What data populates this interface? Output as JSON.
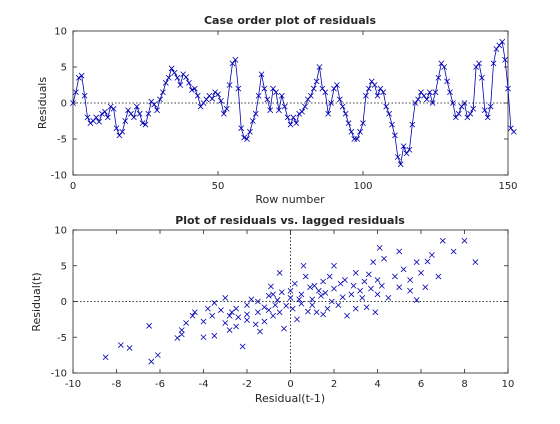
{
  "chart_data": [
    {
      "type": "line",
      "title": "Case order plot of residuals",
      "xlabel": "Row number",
      "ylabel": "Residuals",
      "xlim": [
        0,
        150
      ],
      "ylim": [
        -10,
        10
      ],
      "xticks": [
        0,
        50,
        100,
        150
      ],
      "yticks": [
        -10,
        -5,
        0,
        5,
        10
      ],
      "reference_line": 0,
      "marker": "x",
      "series_color": "#0000b3",
      "y": [
        0.0,
        1.5,
        3.5,
        3.8,
        1.0,
        -2.0,
        -2.8,
        -2.5,
        -2.0,
        -2.6,
        -1.5,
        -1.2,
        -2.0,
        -0.5,
        -0.8,
        -3.5,
        -4.5,
        -4.0,
        -2.5,
        -1.0,
        -1.5,
        -2.0,
        -0.5,
        -1.5,
        -2.8,
        -3.0,
        -1.5,
        0.2,
        -0.2,
        -1.0,
        0.5,
        1.5,
        2.8,
        3.5,
        4.8,
        4.2,
        3.5,
        2.5,
        4.0,
        3.6,
        2.8,
        1.8,
        2.0,
        1.0,
        -0.5,
        0.0,
        0.5,
        1.0,
        0.6,
        1.5,
        1.2,
        0.3,
        -1.5,
        -0.8,
        2.5,
        5.5,
        6.0,
        2.0,
        -3.5,
        -4.8,
        -5.0,
        -4.0,
        -2.5,
        -1.5,
        1.0,
        4.0,
        2.0,
        0.5,
        -1.0,
        2.0,
        1.5,
        -1.0,
        1.0,
        -0.5,
        -2.0,
        -3.0,
        -2.0,
        -2.8,
        -1.5,
        -1.2,
        -0.5,
        0.5,
        1.0,
        2.0,
        3.0,
        5.0,
        2.0,
        1.5,
        -1.5,
        0.0,
        2.0,
        2.5,
        0.5,
        -0.5,
        -1.5,
        -2.8,
        -4.0,
        -5.0,
        -5.0,
        -4.0,
        -2.8,
        1.0,
        2.0,
        3.0,
        2.5,
        1.0,
        2.0,
        1.5,
        -0.5,
        -1.5,
        -3.0,
        -4.5,
        -7.5,
        -8.5,
        -6.0,
        -7.0,
        -6.5,
        -3.0,
        0.0,
        0.5,
        1.5,
        1.0,
        0.5,
        1.5,
        0.0,
        1.5,
        3.5,
        5.5,
        5.0,
        3.0,
        1.5,
        0.0,
        -2.0,
        -1.5,
        -0.5,
        0.0,
        -2.0,
        -1.5,
        -0.8,
        5.0,
        5.5,
        3.5,
        -1.0,
        -2.0,
        -0.5,
        5.5,
        7.5,
        8.0,
        8.5,
        6.0,
        2.0,
        -3.5,
        -4.0
      ]
    },
    {
      "type": "scatter",
      "title": "Plot of residuals vs. lagged residuals",
      "xlabel": "Residual(t-1)",
      "ylabel": "Residual(t)",
      "xlim": [
        -10,
        10
      ],
      "ylim": [
        -10,
        10
      ],
      "xticks": [
        -10,
        -8,
        -6,
        -4,
        -2,
        0,
        2,
        4,
        6,
        8,
        10
      ],
      "yticks": [
        -10,
        -5,
        0,
        5,
        10
      ],
      "reference_lines": {
        "x": 0,
        "y": 0
      },
      "marker": "x",
      "series_color": "#0000b3",
      "points": [
        [
          -8.5,
          -7.8
        ],
        [
          -7.8,
          -6.1
        ],
        [
          -7.4,
          -6.5
        ],
        [
          -6.5,
          -3.4
        ],
        [
          -6.4,
          -8.4
        ],
        [
          -6.1,
          -7.5
        ],
        [
          -5.2,
          -5.1
        ],
        [
          -5.0,
          -4.6
        ],
        [
          -5.0,
          -4.0
        ],
        [
          -4.8,
          -3.0
        ],
        [
          -4.5,
          -2.0
        ],
        [
          -4.4,
          -1.5
        ],
        [
          -4.0,
          -2.8
        ],
        [
          -4.0,
          -5.0
        ],
        [
          -3.8,
          -1.0
        ],
        [
          -3.6,
          -2.0
        ],
        [
          -3.5,
          -4.8
        ],
        [
          -3.5,
          -0.2
        ],
        [
          -3.2,
          -1.2
        ],
        [
          -3.0,
          -3.0
        ],
        [
          -3.0,
          0.5
        ],
        [
          -2.8,
          -2.0
        ],
        [
          -2.8,
          -4.0
        ],
        [
          -2.7,
          -1.5
        ],
        [
          -2.5,
          -1.0
        ],
        [
          -2.5,
          -3.5
        ],
        [
          -2.4,
          -2.2
        ],
        [
          -2.2,
          -6.3
        ],
        [
          -2.0,
          -0.5
        ],
        [
          -2.0,
          -2.6
        ],
        [
          -2.0,
          -1.8
        ],
        [
          -1.8,
          0.3
        ],
        [
          -1.6,
          -3.2
        ],
        [
          -1.5,
          -1.5
        ],
        [
          -1.5,
          0.0
        ],
        [
          -1.4,
          -4.2
        ],
        [
          -1.2,
          -0.8
        ],
        [
          -1.2,
          -2.8
        ],
        [
          -1.0,
          0.8
        ],
        [
          -1.0,
          -1.2
        ],
        [
          -0.9,
          2.1
        ],
        [
          -0.8,
          1.0
        ],
        [
          -0.8,
          -2.0
        ],
        [
          -0.7,
          -0.5
        ],
        [
          -0.6,
          0.2
        ],
        [
          -0.5,
          -1.5
        ],
        [
          -0.5,
          4.0
        ],
        [
          -0.4,
          1.3
        ],
        [
          -0.3,
          -3.8
        ],
        [
          -0.2,
          -0.6
        ],
        [
          0.0,
          1.5
        ],
        [
          0.0,
          0.5
        ],
        [
          0.1,
          -1.0
        ],
        [
          0.2,
          2.5
        ],
        [
          0.3,
          -2.5
        ],
        [
          0.4,
          0.3
        ],
        [
          0.5,
          -0.3
        ],
        [
          0.5,
          1.0
        ],
        [
          0.6,
          5.0
        ],
        [
          0.7,
          3.5
        ],
        [
          0.8,
          -1.4
        ],
        [
          0.9,
          2.0
        ],
        [
          1.0,
          -0.5
        ],
        [
          1.0,
          0.3
        ],
        [
          1.1,
          2.2
        ],
        [
          1.2,
          -1.5
        ],
        [
          1.3,
          1.5
        ],
        [
          1.4,
          0.8
        ],
        [
          1.5,
          2.8
        ],
        [
          1.5,
          -1.8
        ],
        [
          1.6,
          1.2
        ],
        [
          1.7,
          -1.0
        ],
        [
          1.8,
          3.5
        ],
        [
          1.9,
          0.0
        ],
        [
          2.0,
          1.8
        ],
        [
          2.0,
          5.0
        ],
        [
          2.2,
          -0.5
        ],
        [
          2.3,
          2.5
        ],
        [
          2.4,
          0.6
        ],
        [
          2.5,
          3.0
        ],
        [
          2.6,
          -2.0
        ],
        [
          2.8,
          1.0
        ],
        [
          2.9,
          2.2
        ],
        [
          3.0,
          4.0
        ],
        [
          3.0,
          -1.0
        ],
        [
          3.2,
          1.5
        ],
        [
          3.3,
          0.5
        ],
        [
          3.4,
          2.8
        ],
        [
          3.5,
          -0.8
        ],
        [
          3.6,
          3.8
        ],
        [
          3.7,
          1.8
        ],
        [
          3.8,
          5.5
        ],
        [
          3.9,
          -1.5
        ],
        [
          4.0,
          3.0
        ],
        [
          4.0,
          1.0
        ],
        [
          4.1,
          7.5
        ],
        [
          4.2,
          2.2
        ],
        [
          4.3,
          6.0
        ],
        [
          4.5,
          0.5
        ],
        [
          4.8,
          3.5
        ],
        [
          5.0,
          2.0
        ],
        [
          5.0,
          7.0
        ],
        [
          5.2,
          4.5
        ],
        [
          5.5,
          1.5
        ],
        [
          5.5,
          3.0
        ],
        [
          5.8,
          0.2
        ],
        [
          5.8,
          5.5
        ],
        [
          6.0,
          4.0
        ],
        [
          6.2,
          2.0
        ],
        [
          6.3,
          5.6
        ],
        [
          6.5,
          6.5
        ],
        [
          6.8,
          3.5
        ],
        [
          7.0,
          8.5
        ],
        [
          7.5,
          7.0
        ],
        [
          8.0,
          8.5
        ],
        [
          8.5,
          5.5
        ]
      ]
    }
  ]
}
